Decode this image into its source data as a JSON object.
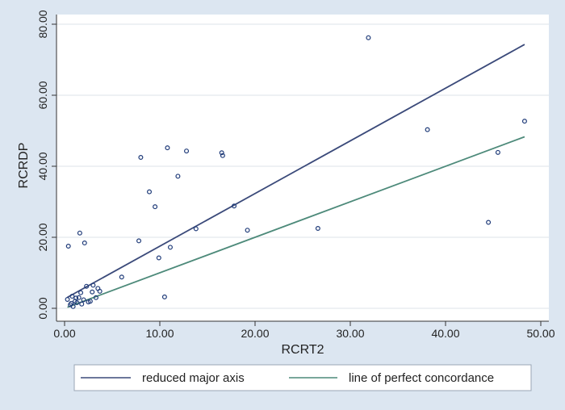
{
  "chart_data": {
    "type": "scatter",
    "xlabel": "RCRT2",
    "ylabel": "RCRDP",
    "xlim": [
      0,
      50
    ],
    "ylim": [
      0,
      80
    ],
    "x_ticks": [
      "0.00",
      "10.00",
      "20.00",
      "30.00",
      "40.00",
      "50.00"
    ],
    "y_ticks": [
      "0.00",
      "20.00",
      "40.00",
      "60.00",
      "80.00"
    ],
    "grid": "horizontal",
    "legend_position": "bottom",
    "points": [
      {
        "x": 0.4,
        "y": 17.5
      },
      {
        "x": 1.6,
        "y": 21.2
      },
      {
        "x": 2.1,
        "y": 18.4
      },
      {
        "x": 0.3,
        "y": 2.5
      },
      {
        "x": 0.6,
        "y": 1.0
      },
      {
        "x": 0.8,
        "y": 3.4
      },
      {
        "x": 0.9,
        "y": 0.5
      },
      {
        "x": 1.1,
        "y": 2.0
      },
      {
        "x": 1.3,
        "y": 1.6
      },
      {
        "x": 1.5,
        "y": 3.0
      },
      {
        "x": 1.7,
        "y": 4.4
      },
      {
        "x": 1.8,
        "y": 1.2
      },
      {
        "x": 2.0,
        "y": 2.4
      },
      {
        "x": 2.3,
        "y": 6.2
      },
      {
        "x": 2.5,
        "y": 1.8
      },
      {
        "x": 2.7,
        "y": 2.0
      },
      {
        "x": 2.9,
        "y": 4.6
      },
      {
        "x": 3.0,
        "y": 6.5
      },
      {
        "x": 3.3,
        "y": 3.0
      },
      {
        "x": 3.5,
        "y": 5.6
      },
      {
        "x": 3.7,
        "y": 4.8
      },
      {
        "x": 1.2,
        "y": 2.9
      },
      {
        "x": 0.7,
        "y": 1.4
      },
      {
        "x": 6.0,
        "y": 8.8
      },
      {
        "x": 7.8,
        "y": 19.0
      },
      {
        "x": 8.0,
        "y": 42.5
      },
      {
        "x": 8.9,
        "y": 32.8
      },
      {
        "x": 9.5,
        "y": 28.6
      },
      {
        "x": 9.9,
        "y": 14.2
      },
      {
        "x": 10.5,
        "y": 3.2
      },
      {
        "x": 10.8,
        "y": 45.2
      },
      {
        "x": 11.1,
        "y": 17.2
      },
      {
        "x": 11.9,
        "y": 37.2
      },
      {
        "x": 12.8,
        "y": 44.3
      },
      {
        "x": 13.8,
        "y": 22.4
      },
      {
        "x": 16.5,
        "y": 43.8
      },
      {
        "x": 16.6,
        "y": 43.0
      },
      {
        "x": 17.8,
        "y": 28.8
      },
      {
        "x": 19.2,
        "y": 22.0
      },
      {
        "x": 26.6,
        "y": 22.5
      },
      {
        "x": 31.9,
        "y": 76.2
      },
      {
        "x": 38.1,
        "y": 50.3
      },
      {
        "x": 44.5,
        "y": 24.2
      },
      {
        "x": 45.5,
        "y": 43.9
      },
      {
        "x": 48.3,
        "y": 52.7
      }
    ],
    "lines": [
      {
        "name": "reduced major axis",
        "x": [
          0.3,
          48.3
        ],
        "y": [
          3.1,
          74.3
        ],
        "color": "#3b4a7a"
      },
      {
        "name": "line of perfect concordance",
        "x": [
          0.3,
          48.3
        ],
        "y": [
          0.3,
          48.3
        ],
        "color": "#4d8a7a"
      }
    ],
    "marker_color": "#1e3a78"
  }
}
